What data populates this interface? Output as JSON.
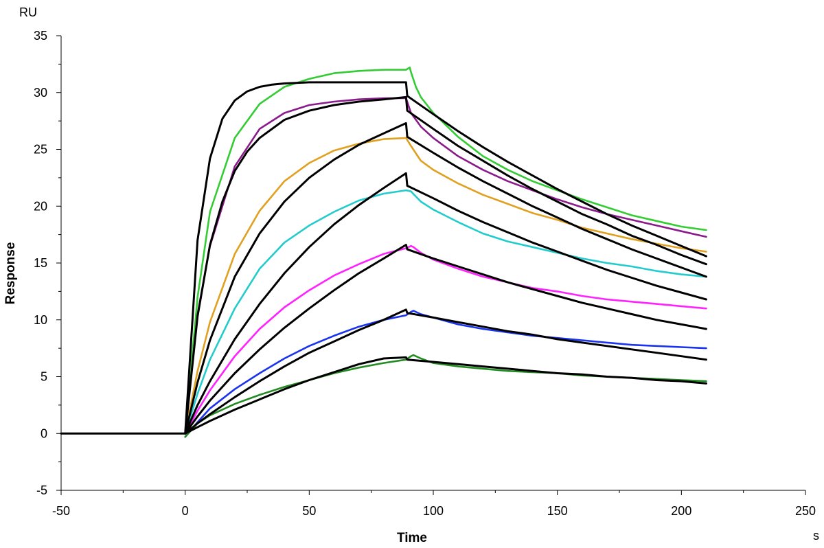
{
  "chart_data": {
    "type": "line",
    "title": "",
    "xlabel": "Time",
    "ylabel": "Response",
    "x_unit": "s",
    "y_unit": "RU",
    "xlim": [
      -50,
      250
    ],
    "ylim": [
      -5,
      35
    ],
    "x_ticks": [
      -50,
      0,
      50,
      100,
      150,
      200,
      250
    ],
    "y_ticks": [
      -5,
      0,
      5,
      10,
      15,
      20,
      25,
      30,
      35
    ],
    "x_tick_labels": [
      "-50",
      "0",
      "50",
      "100",
      "150",
      "200",
      "250"
    ],
    "y_tick_labels": [
      "-5",
      "0",
      "5",
      "10",
      "15",
      "20",
      "25",
      "30",
      "35"
    ],
    "grid": false,
    "legend": "none",
    "series": [
      {
        "color": "#33cc33",
        "x": [
          -50,
          0,
          5,
          10,
          20,
          30,
          40,
          50,
          60,
          70,
          80,
          89,
          90.5,
          91,
          93,
          95,
          100,
          110,
          120,
          130,
          140,
          150,
          160,
          170,
          180,
          190,
          200,
          210
        ],
        "y": [
          0,
          0,
          12,
          19.5,
          26,
          29,
          30.5,
          31.2,
          31.7,
          31.9,
          32,
          32,
          32.2,
          31.8,
          30.5,
          29.6,
          28.2,
          26.1,
          24.4,
          23.2,
          22.2,
          21.4,
          20.6,
          19.9,
          19.2,
          18.7,
          18.2,
          17.9
        ]
      },
      {
        "color": "#8b1a8b",
        "x": [
          0,
          5,
          10,
          20,
          30,
          40,
          50,
          60,
          70,
          80,
          89,
          91,
          95,
          100,
          110,
          120,
          130,
          140,
          150,
          160,
          170,
          180,
          190,
          200,
          210
        ],
        "y": [
          0,
          10.5,
          16.5,
          23.5,
          26.8,
          28.2,
          28.9,
          29.2,
          29.4,
          29.5,
          29.5,
          28.2,
          27,
          26,
          24.4,
          23.2,
          22.2,
          21.4,
          20.6,
          19.9,
          19.3,
          18.8,
          18.3,
          17.8,
          17.3
        ]
      },
      {
        "color": "#e0a020",
        "x": [
          0,
          5,
          10,
          20,
          30,
          40,
          50,
          60,
          70,
          80,
          89,
          91,
          95,
          100,
          110,
          120,
          130,
          140,
          150,
          160,
          170,
          180,
          190,
          200,
          210
        ],
        "y": [
          0,
          5.5,
          9.8,
          15.8,
          19.6,
          22.2,
          23.8,
          24.9,
          25.5,
          25.9,
          26,
          25.3,
          24,
          23.2,
          22,
          21,
          20.2,
          19.4,
          18.8,
          18.1,
          17.6,
          17.1,
          16.7,
          16.3,
          16
        ]
      },
      {
        "color": "#22cccc",
        "x": [
          0,
          5,
          10,
          20,
          30,
          40,
          50,
          60,
          70,
          80,
          89,
          91,
          95,
          100,
          110,
          120,
          130,
          140,
          150,
          160,
          170,
          180,
          190,
          200,
          210
        ],
        "y": [
          0,
          3.5,
          6.5,
          11,
          14.5,
          16.8,
          18.3,
          19.5,
          20.5,
          21.1,
          21.4,
          21.3,
          20.4,
          19.7,
          18.6,
          17.6,
          16.9,
          16.4,
          15.9,
          15.4,
          15,
          14.7,
          14.3,
          14,
          13.8
        ]
      },
      {
        "color": "#ff22ff",
        "x": [
          0,
          5,
          10,
          20,
          30,
          40,
          50,
          60,
          70,
          80,
          89,
          91,
          92,
          95,
          100,
          110,
          120,
          130,
          140,
          150,
          160,
          170,
          180,
          190,
          200,
          210
        ],
        "y": [
          0,
          2,
          3.8,
          6.8,
          9.2,
          11.1,
          12.6,
          13.9,
          14.9,
          15.8,
          16.3,
          16.5,
          16.4,
          15.9,
          15.3,
          14.5,
          13.8,
          13.3,
          12.8,
          12.5,
          12.1,
          11.8,
          11.6,
          11.4,
          11.2,
          11
        ]
      },
      {
        "color": "#1a33ee",
        "x": [
          0,
          5,
          10,
          20,
          30,
          40,
          50,
          60,
          70,
          80,
          89,
          91,
          92,
          95,
          100,
          110,
          120,
          130,
          140,
          150,
          160,
          170,
          180,
          190,
          200,
          210
        ],
        "y": [
          -0.3,
          1,
          2.2,
          3.9,
          5.3,
          6.6,
          7.7,
          8.6,
          9.4,
          10,
          10.4,
          10.7,
          10.8,
          10.5,
          10.2,
          9.6,
          9.2,
          8.9,
          8.6,
          8.4,
          8.2,
          8,
          7.8,
          7.7,
          7.6,
          7.5
        ]
      },
      {
        "color": "#228b22",
        "x": [
          0,
          5,
          10,
          20,
          30,
          40,
          50,
          60,
          70,
          80,
          89,
          91,
          92,
          95,
          100,
          110,
          120,
          130,
          140,
          150,
          160,
          170,
          180,
          190,
          200,
          210
        ],
        "y": [
          -0.3,
          0.9,
          1.6,
          2.6,
          3.4,
          4.1,
          4.7,
          5.3,
          5.8,
          6.2,
          6.5,
          6.8,
          6.9,
          6.6,
          6.2,
          5.9,
          5.7,
          5.5,
          5.4,
          5.3,
          5.1,
          5,
          4.9,
          4.8,
          4.7,
          4.6
        ]
      },
      {
        "color": "#000000",
        "x": [
          -50,
          0,
          5,
          10,
          15,
          20,
          25,
          30,
          35,
          40,
          50,
          60,
          70,
          80,
          89,
          89.5,
          100,
          110,
          120,
          130,
          140,
          150,
          160,
          170,
          180,
          190,
          200,
          210
        ],
        "y": [
          0,
          0,
          17,
          24.2,
          27.7,
          29.3,
          30.1,
          30.5,
          30.7,
          30.8,
          30.9,
          30.9,
          30.9,
          30.9,
          30.9,
          29.7,
          28.1,
          26.6,
          25.2,
          23.9,
          22.7,
          21.5,
          20.4,
          19.3,
          18.3,
          17.4,
          16.5,
          15.6
        ]
      },
      {
        "color": "#000000",
        "x": [
          0,
          5,
          10,
          15,
          20,
          25,
          30,
          40,
          50,
          60,
          70,
          80,
          89,
          89.5,
          100,
          110,
          120,
          130,
          140,
          150,
          160,
          170,
          180,
          190,
          200,
          210
        ],
        "y": [
          0,
          10.3,
          16.6,
          20.4,
          23.1,
          24.8,
          26,
          27.6,
          28.4,
          28.9,
          29.2,
          29.4,
          29.6,
          28.4,
          26.8,
          25.3,
          24,
          22.7,
          21.5,
          20.4,
          19.3,
          18.4,
          17.4,
          16.6,
          15.7,
          14.9
        ]
      },
      {
        "color": "#000000",
        "x": [
          0,
          5,
          10,
          20,
          30,
          40,
          50,
          60,
          70,
          80,
          89,
          89.5,
          100,
          110,
          120,
          130,
          140,
          150,
          160,
          170,
          180,
          190,
          200,
          210
        ],
        "y": [
          0,
          4.5,
          8.2,
          13.8,
          17.6,
          20.4,
          22.5,
          24.1,
          25.4,
          26.4,
          27.3,
          26.1,
          24.7,
          23.4,
          22.2,
          21.1,
          20,
          19,
          18,
          17.1,
          16.2,
          15.4,
          14.6,
          13.8
        ]
      },
      {
        "color": "#000000",
        "x": [
          0,
          5,
          10,
          20,
          30,
          40,
          50,
          60,
          70,
          80,
          89,
          89.5,
          100,
          110,
          120,
          130,
          140,
          150,
          160,
          170,
          180,
          190,
          200,
          210
        ],
        "y": [
          0,
          2.5,
          4.6,
          8.3,
          11.4,
          14.1,
          16.4,
          18.4,
          20.1,
          21.6,
          22.9,
          21.8,
          20.7,
          19.6,
          18.6,
          17.7,
          16.8,
          16,
          15.2,
          14.4,
          13.7,
          13,
          12.4,
          11.8
        ]
      },
      {
        "color": "#000000",
        "x": [
          0,
          5,
          10,
          20,
          30,
          40,
          50,
          60,
          70,
          80,
          89,
          89.5,
          100,
          110,
          120,
          130,
          140,
          150,
          160,
          170,
          180,
          190,
          200,
          210
        ],
        "y": [
          0,
          1.5,
          2.9,
          5.3,
          7.4,
          9.3,
          11,
          12.6,
          14.1,
          15.4,
          16.6,
          16.2,
          15.4,
          14.7,
          14,
          13.3,
          12.7,
          12.1,
          11.5,
          11,
          10.5,
          10,
          9.6,
          9.2
        ]
      },
      {
        "color": "#000000",
        "x": [
          0,
          5,
          10,
          20,
          30,
          40,
          50,
          60,
          70,
          80,
          89,
          89.5,
          100,
          110,
          120,
          130,
          140,
          150,
          160,
          170,
          180,
          190,
          200,
          210
        ],
        "y": [
          0,
          0.9,
          1.7,
          3.2,
          4.6,
          5.9,
          7.1,
          8.1,
          9.1,
          10,
          10.9,
          10.6,
          10.2,
          9.8,
          9.4,
          9,
          8.7,
          8.3,
          8,
          7.7,
          7.4,
          7.1,
          6.8,
          6.5
        ]
      },
      {
        "color": "#000000",
        "x": [
          0,
          5,
          10,
          20,
          30,
          40,
          50,
          60,
          70,
          80,
          89,
          89.5,
          100,
          110,
          120,
          130,
          140,
          150,
          160,
          170,
          180,
          190,
          200,
          210
        ],
        "y": [
          0,
          0.55,
          1.1,
          2.1,
          3,
          3.9,
          4.7,
          5.4,
          6.1,
          6.6,
          6.7,
          6.5,
          6.3,
          6.1,
          5.9,
          5.7,
          5.5,
          5.3,
          5.2,
          5,
          4.9,
          4.7,
          4.6,
          4.4
        ]
      }
    ]
  }
}
